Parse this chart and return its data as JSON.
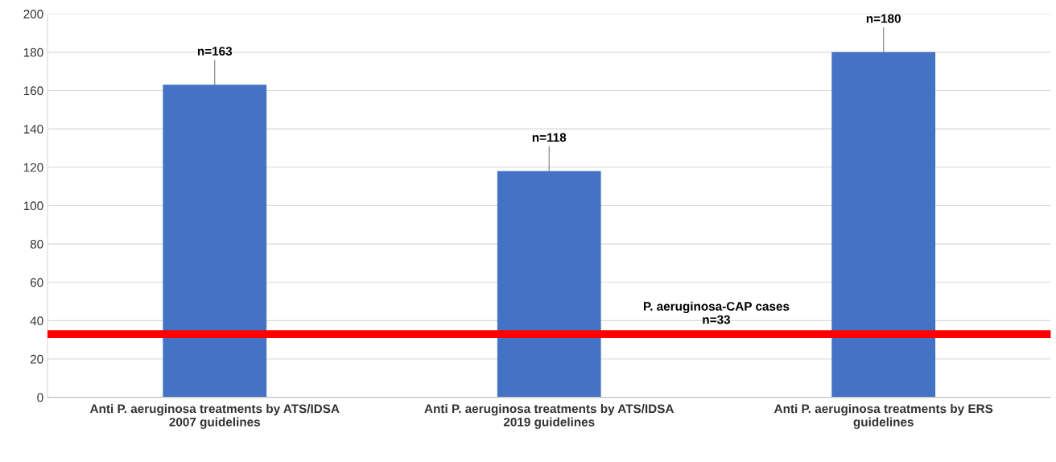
{
  "chart_data": {
    "type": "bar",
    "categories": [
      "Anti P. aeruginosa treatments by ATS/IDSA 2007 guidelines",
      "Anti P. aeruginosa treatments by ATS/IDSA 2019 guidelines",
      "Anti P. aeruginosa treatments by ERS guidelines"
    ],
    "values": [
      163,
      118,
      180
    ],
    "value_labels": [
      "n=163",
      "n=118",
      "n=180"
    ],
    "color": "#4472c4",
    "ylim": [
      0,
      200
    ],
    "yticks": [
      0,
      20,
      40,
      60,
      80,
      100,
      120,
      140,
      160,
      180,
      200
    ],
    "grid": "y",
    "ref_lines": [
      {
        "axis": "y",
        "value": 33,
        "label": "P. aeruginosa-CAP cases\nn=33",
        "color": "#ff0000",
        "line_style": "solid"
      }
    ]
  }
}
